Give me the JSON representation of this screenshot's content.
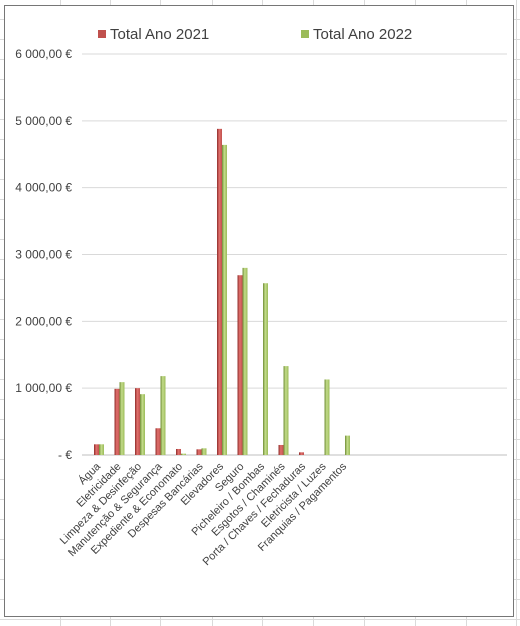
{
  "chart_data": {
    "type": "bar",
    "title": "",
    "xlabel": "",
    "ylabel": "",
    "categories": [
      "Água",
      "Eletricidade",
      "Limpeza & Desinfeção",
      "Manutenção & Segurança",
      "Expediente & Economato",
      "Despesas Bancárias",
      "Elevadores",
      "Seguro",
      "Picheleiro / Bombas",
      "Esgotos / Chaminés",
      "Porta / Chaves / Fechaduras",
      "Eletricista / Luzes",
      "Franquias / Pagamentos"
    ],
    "series": [
      {
        "name": "Total Ano 2021",
        "color": "#c0504d",
        "values": [
          160,
          990,
          1000,
          400,
          90,
          85,
          4880,
          2690,
          0,
          150,
          40,
          0,
          0
        ]
      },
      {
        "name": "Total Ano 2022",
        "color": "#9bbb59",
        "values": [
          160,
          1090,
          910,
          1180,
          20,
          100,
          4640,
          2800,
          2570,
          1330,
          0,
          1130,
          290
        ]
      }
    ],
    "ylim": [
      0,
      6000
    ],
    "yticks": [
      0,
      1000,
      2000,
      3000,
      4000,
      5000,
      6000
    ],
    "ytick_labels": [
      "-   €",
      "1 000,00 €",
      "2 000,00 €",
      "3 000,00 €",
      "4 000,00 €",
      "5 000,00 €",
      "6 000,00 €"
    ],
    "grid": true,
    "legend_position": "top"
  }
}
